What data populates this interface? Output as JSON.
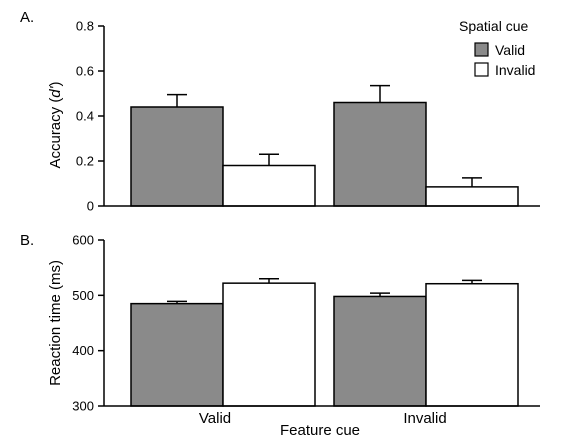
{
  "chart_data": [
    {
      "panel": "A.",
      "type": "bar",
      "ylabel_main": "Accuracy (",
      "ylabel_italic": "d'",
      "ylabel_end": ")",
      "ylim": [
        0,
        0.8
      ],
      "yticks": [
        "0",
        "0.2",
        "0.4",
        "0.6",
        "0.8"
      ],
      "categories": [
        "Valid",
        "Invalid"
      ],
      "series": [
        {
          "name": "Valid",
          "values": [
            0.44,
            0.46
          ],
          "errors": [
            0.055,
            0.075
          ],
          "color": "#8a8a8a"
        },
        {
          "name": "Invalid",
          "values": [
            0.18,
            0.085
          ],
          "errors": [
            0.05,
            0.04
          ],
          "color": "#ffffff"
        }
      ],
      "legend": {
        "title": "Spatial cue",
        "placement": "top-right"
      }
    },
    {
      "panel": "B.",
      "type": "bar",
      "ylabel": "Reaction time (ms)",
      "ylim": [
        300,
        600
      ],
      "yticks": [
        "300",
        "400",
        "500",
        "600"
      ],
      "xlabel": "Feature cue",
      "categories": [
        "Valid",
        "Invalid"
      ],
      "series": [
        {
          "name": "Valid",
          "values": [
            485,
            498
          ],
          "errors": [
            4,
            6
          ],
          "color": "#8a8a8a"
        },
        {
          "name": "Invalid",
          "values": [
            522,
            521
          ],
          "errors": [
            8,
            6
          ],
          "color": "#ffffff"
        }
      ]
    }
  ]
}
